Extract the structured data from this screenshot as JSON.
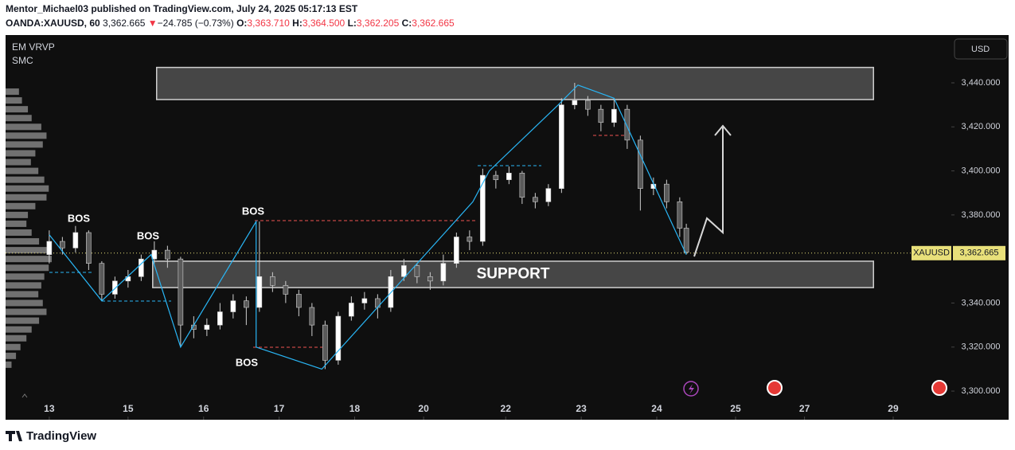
{
  "header": {
    "publisher": "Mentor_Michael03 published on TradingView.com, July 24, 2025 05:17:13 EST",
    "symbol": "OANDA:XAUUSD, 60",
    "last": "3,362.665",
    "arrow": "▼",
    "change": "−24.785 (−0.73%)",
    "o_label": "O:",
    "o": "3,363.710",
    "h_label": "H:",
    "h": "3,364.500",
    "l_label": "L:",
    "l": "3,362.205",
    "c_label": "C:",
    "c": "3,362.665"
  },
  "footer": {
    "brand": "TradingView"
  },
  "chart_data": {
    "type": "candlestick",
    "indicators": [
      "EM VRVP",
      "SMC"
    ],
    "currency": "USD",
    "symbol_tag": "XAUUSD",
    "last_price": {
      "value": 3362.665,
      "label": "3,362.665"
    },
    "up_color": "#ffffff",
    "down_color": "#5a5a5a",
    "line_color": "#29b6f6",
    "zone_color": "#5a5a5a",
    "xlim": [
      -13.3,
      274.7
    ],
    "ylim": [
      3287,
      3461.7
    ],
    "xticks": [
      {
        "value": 0,
        "label": "13"
      },
      {
        "value": 24,
        "label": "15"
      },
      {
        "value": 47,
        "label": "16"
      },
      {
        "value": 70,
        "label": "17"
      },
      {
        "value": 93,
        "label": "18"
      },
      {
        "value": 114,
        "label": "20"
      },
      {
        "value": 139,
        "label": "22"
      },
      {
        "value": 162,
        "label": "23"
      },
      {
        "value": 185,
        "label": "24"
      },
      {
        "value": 209,
        "label": "25"
      },
      {
        "value": 230,
        "label": "27"
      },
      {
        "value": 257,
        "label": "29"
      }
    ],
    "yticks": [
      {
        "value": 3440,
        "label": "3,440.000"
      },
      {
        "value": 3420,
        "label": "3,420.000"
      },
      {
        "value": 3400,
        "label": "3,400.000"
      },
      {
        "value": 3380,
        "label": "3,380.000"
      },
      {
        "value": 3340,
        "label": "3,340.000"
      },
      {
        "value": 3320,
        "label": "3,320.000"
      },
      {
        "value": 3300,
        "label": "3,300.000"
      }
    ],
    "x": [
      0,
      4,
      8,
      12,
      16,
      20,
      24,
      28,
      32,
      36,
      40,
      44,
      48,
      52,
      56,
      60,
      64,
      68,
      72,
      76,
      80,
      84,
      88,
      92,
      96,
      100,
      104,
      108,
      112,
      116,
      120,
      124,
      128,
      132,
      136,
      140,
      144,
      148,
      152,
      156,
      160,
      164,
      168,
      172,
      176,
      180,
      184,
      188,
      192,
      194
    ],
    "open": [
      3362,
      3368,
      3365,
      3372,
      3358,
      3344,
      3350,
      3352,
      3360,
      3364,
      3360,
      3330,
      3328,
      3330,
      3336,
      3341,
      3338,
      3352,
      3348,
      3344,
      3338,
      3330,
      3314,
      3334,
      3340,
      3342,
      3338,
      3352,
      3357,
      3352,
      3350,
      3358,
      3370,
      3368,
      3398,
      3396,
      3399,
      3388,
      3386,
      3392,
      3430,
      3432,
      3428,
      3422,
      3428,
      3414,
      3392,
      3394,
      3386,
      3374
    ],
    "high": [
      3373,
      3370,
      3375,
      3373,
      3359,
      3352,
      3355,
      3362,
      3368,
      3366,
      3361,
      3334,
      3333,
      3340,
      3344,
      3343,
      3377,
      3354,
      3350,
      3346,
      3340,
      3332,
      3336,
      3343,
      3345,
      3344,
      3355,
      3360,
      3358,
      3354,
      3362,
      3372,
      3373,
      3401,
      3400,
      3402,
      3400,
      3390,
      3394,
      3433,
      3440,
      3434,
      3430,
      3433,
      3430,
      3416,
      3397,
      3396,
      3388,
      3376
    ],
    "low": [
      3358,
      3362,
      3363,
      3355,
      3341,
      3342,
      3347,
      3350,
      3358,
      3356,
      3320,
      3324,
      3325,
      3328,
      3333,
      3330,
      3336,
      3345,
      3340,
      3334,
      3325,
      3310,
      3312,
      3332,
      3337,
      3333,
      3336,
      3350,
      3349,
      3346,
      3348,
      3356,
      3364,
      3366,
      3392,
      3394,
      3385,
      3383,
      3384,
      3390,
      3428,
      3425,
      3418,
      3420,
      3410,
      3382,
      3389,
      3383,
      3370,
      3362
    ],
    "close": [
      3368,
      3365,
      3372,
      3358,
      3344,
      3350,
      3352,
      3360,
      3364,
      3360,
      3330,
      3328,
      3330,
      3336,
      3341,
      3338,
      3352,
      3348,
      3344,
      3338,
      3330,
      3314,
      3334,
      3340,
      3342,
      3338,
      3352,
      3357,
      3352,
      3350,
      3358,
      3370,
      3368,
      3398,
      3396,
      3399,
      3388,
      3386,
      3392,
      3430,
      3432,
      3428,
      3422,
      3428,
      3414,
      3392,
      3394,
      3386,
      3374,
      3363
    ],
    "zigzag": {
      "x": [
        0,
        16,
        31,
        40,
        63,
        63,
        83,
        129,
        134,
        155,
        161,
        172,
        194
      ],
      "values": [
        3371,
        3341,
        3362,
        3320,
        3377,
        3320,
        3310,
        3386,
        3400,
        3430,
        3439,
        3433,
        3362
      ]
    },
    "zones": [
      {
        "x": [
          32.7,
          251
        ],
        "price": [
          3432.4,
          3447
        ]
      },
      {
        "label": "SUPPORT",
        "x": [
          31.5,
          251
        ],
        "price": [
          3347,
          3359
        ]
      }
    ],
    "annotations": [
      "BOS",
      "BOS",
      "BOS",
      "BOS"
    ],
    "volume_profile": {
      "prices": [
        3436,
        3432,
        3428,
        3424,
        3420,
        3416,
        3412,
        3408,
        3404,
        3400,
        3396,
        3392,
        3388,
        3384,
        3380,
        3376,
        3372,
        3368,
        3364,
        3360,
        3356,
        3352,
        3348,
        3344,
        3340,
        3336,
        3332,
        3328,
        3324,
        3320,
        3316,
        3312
      ],
      "values": [
        18,
        22,
        30,
        35,
        48,
        55,
        50,
        40,
        34,
        44,
        52,
        58,
        55,
        40,
        30,
        28,
        35,
        45,
        60,
        62,
        58,
        52,
        48,
        44,
        50,
        55,
        45,
        35,
        28,
        20,
        14,
        8
      ]
    }
  }
}
